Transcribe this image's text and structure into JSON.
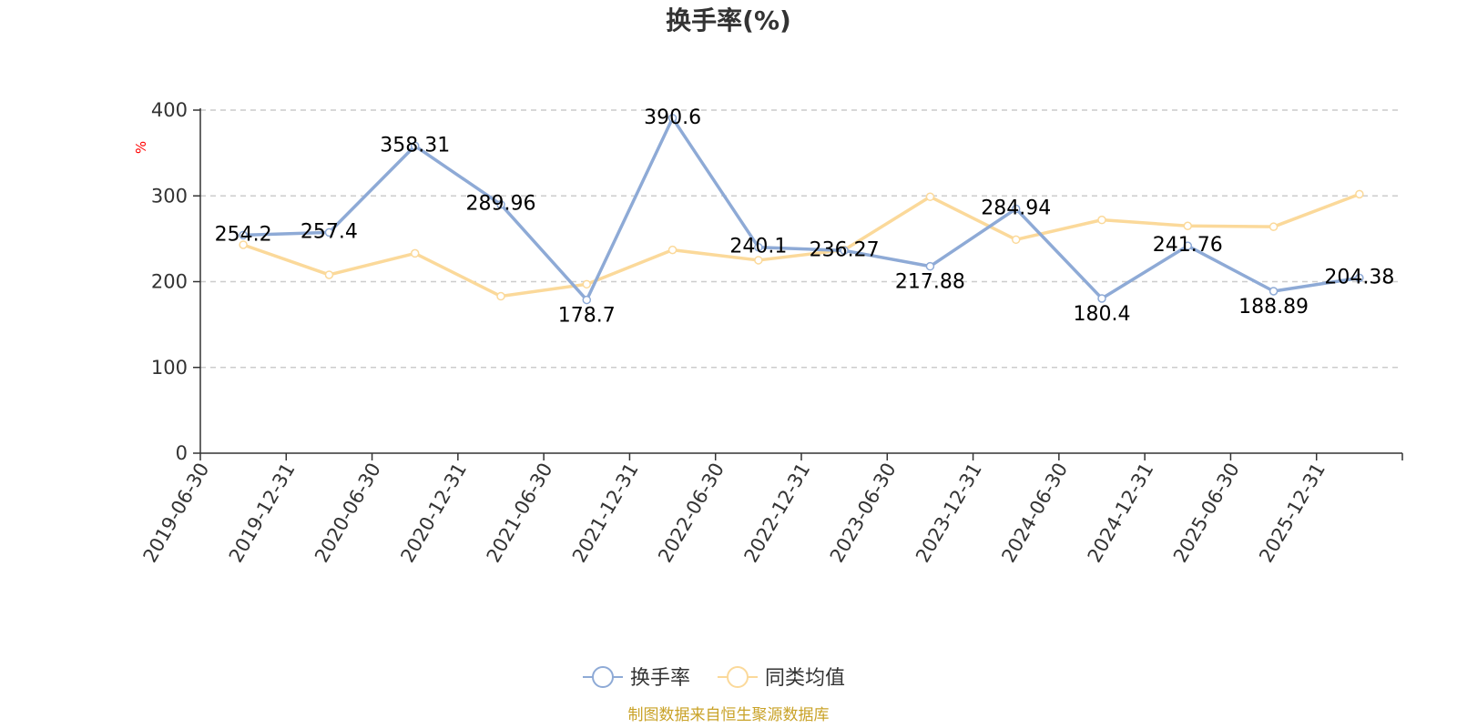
{
  "chart_data": {
    "type": "line",
    "title": "换手率(%)",
    "ylabel": "%",
    "ylim": [
      0,
      400
    ],
    "yticks": [
      0,
      100,
      200,
      300,
      400
    ],
    "grid": true,
    "legend_position": "bottom",
    "categories": [
      "2019-06-30",
      "2019-12-31",
      "2020-06-30",
      "2020-12-31",
      "2021-06-30",
      "2021-12-31",
      "2022-06-30",
      "2022-12-31",
      "2023-06-30",
      "2023-12-31",
      "2024-06-30",
      "2024-12-31",
      "2025-06-30",
      "2025-12-31"
    ],
    "series": [
      {
        "name": "换手率",
        "color": "#8eaad6",
        "values": [
          254.2,
          257.4,
          358.31,
          289.96,
          178.7,
          390.6,
          240.1,
          236.27,
          217.88,
          284.94,
          180.4,
          241.76,
          188.89,
          204.38
        ],
        "labels": [
          "254.2",
          "257.4",
          "358.31",
          "289.96",
          "178.7",
          "390.6",
          "240.1",
          "236.27",
          "217.88",
          "284.94",
          "180.4",
          "241.76",
          "188.89",
          "204.38"
        ]
      },
      {
        "name": "同类均值",
        "color": "#fbd99a",
        "values": [
          243,
          208,
          233,
          183,
          197,
          237,
          225,
          237,
          299,
          249,
          272,
          265,
          264,
          302
        ]
      }
    ]
  },
  "source_note": "制图数据来自恒生聚源数据库"
}
